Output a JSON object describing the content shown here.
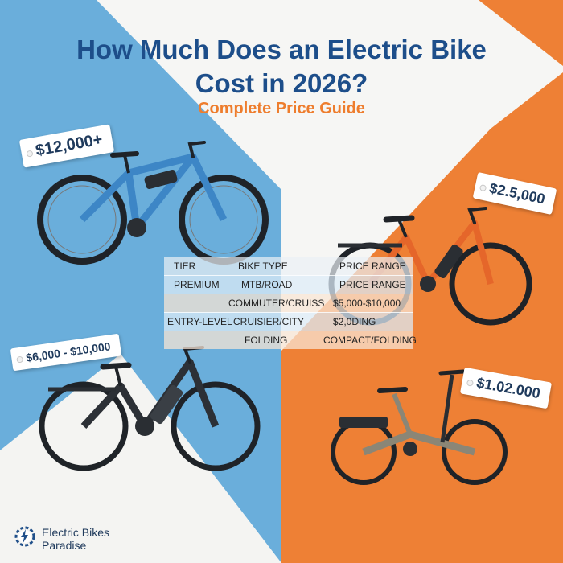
{
  "title_line1": "How Much Does an Electric Bike",
  "title_line2": "Cost in 2026?",
  "subtitle": "Complete Price Guide",
  "price_tags": [
    {
      "label": "$12,000+"
    },
    {
      "label": "$2.5,000"
    },
    {
      "label": "$6,000 - $10,000"
    },
    {
      "label": "$1.02.000"
    }
  ],
  "table": {
    "headers": [
      "TIER",
      "BIKE TYPE",
      "PRICE RANGE"
    ],
    "rows": [
      [
        "PREMIUM",
        "MTB/ROAD",
        "PRICE RANGE"
      ],
      [
        "",
        "COMMUTER/CRUISS",
        "$5,000-$10,000"
      ],
      [
        "ENTRY-LEVEL",
        "CRUISIER/CITY",
        "$2,0DING"
      ],
      [
        "",
        "FOLDING",
        "COMPACT/FOLDING"
      ]
    ]
  },
  "brand": {
    "line1": "Electric Bikes",
    "line2": "Paradise",
    "logo_icon": "bolt-gear-icon"
  },
  "colors": {
    "blue_panel": "#6aaedb",
    "orange_panel": "#ee8035",
    "title": "#1d4e8a",
    "subtitle": "#ee7d2d"
  },
  "icons": [
    "mountain-ebike-icon",
    "commuter-ebike-icon",
    "city-ebike-icon",
    "folding-ebike-icon"
  ]
}
